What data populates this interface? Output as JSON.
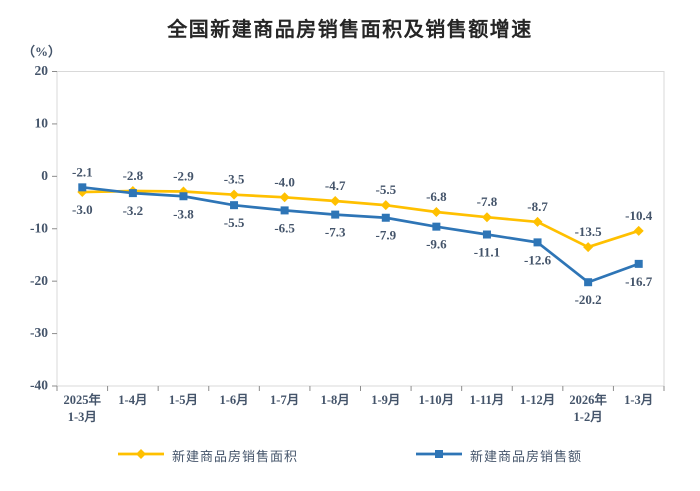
{
  "page": {
    "title": "全国新建商品房销售面积及销售额增速",
    "unit_label": "（%）"
  },
  "chart_data": {
    "type": "line",
    "title": "全国新建商品房销售面积及销售额增速",
    "ylabel": "（%）",
    "xlabel": "",
    "ylim": [
      -40,
      20
    ],
    "yticks": [
      20,
      10,
      0,
      -10,
      -20,
      -30,
      -40
    ],
    "grid": false,
    "legend_position": "bottom",
    "categories": [
      "2025年\n1-3月",
      "1-4月",
      "1-5月",
      "1-6月",
      "1-7月",
      "1-8月",
      "1-9月",
      "1-10月",
      "1-11月",
      "1-12月",
      "2026年\n1-2月",
      "1-3月"
    ],
    "series": [
      {
        "name": "新建商品房销售面积",
        "color": "#FFC000",
        "marker": "diamond",
        "values": [
          -3.0,
          -2.8,
          -2.9,
          -3.5,
          -4.0,
          -4.7,
          -5.5,
          -6.8,
          -7.8,
          -8.7,
          -13.5,
          -10.4
        ]
      },
      {
        "name": "新建商品房销售额",
        "color": "#2E75B6",
        "marker": "square",
        "values": [
          -2.1,
          -3.2,
          -3.8,
          -5.5,
          -6.5,
          -7.3,
          -7.9,
          -9.6,
          -11.1,
          -12.6,
          -20.2,
          -16.7
        ]
      }
    ],
    "colors": {
      "plot_border": "#D9D9D9",
      "tick": "#8C8C8C",
      "label_text": "#44546A",
      "title_text": "#262626"
    }
  }
}
